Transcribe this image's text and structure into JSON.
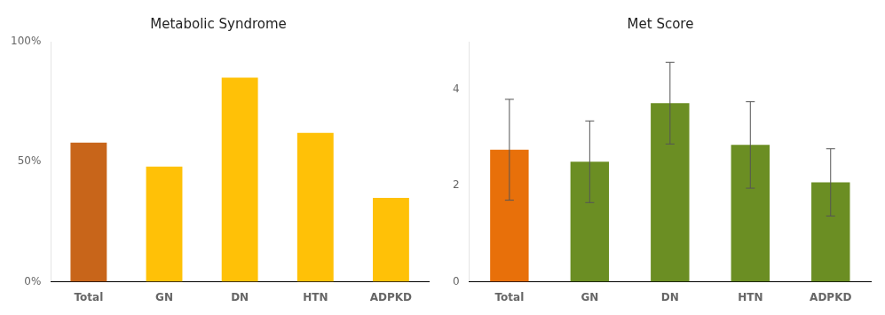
{
  "chart_data": [
    {
      "type": "bar",
      "title": "Metabolic Syndrome",
      "categories": [
        "Total",
        "GN",
        "DN",
        "HTN",
        "ADPKD"
      ],
      "values": [
        0.58,
        0.48,
        0.85,
        0.62,
        0.35
      ],
      "colors": [
        "#C8651A",
        "#FFC107",
        "#FFC107",
        "#FFC107",
        "#FFC107"
      ],
      "ylim": [
        0,
        1.0
      ],
      "yticks": [
        {
          "value": 0.0,
          "label": "0%"
        },
        {
          "value": 0.5,
          "label": "50%"
        },
        {
          "value": 1.0,
          "label": "100%"
        }
      ],
      "grid": false
    },
    {
      "type": "bar",
      "title": "Met Score",
      "categories": [
        "Total",
        "GN",
        "DN",
        "HTN",
        "ADPKD"
      ],
      "values": [
        2.75,
        2.5,
        3.72,
        2.85,
        2.07
      ],
      "errors": [
        1.05,
        0.85,
        0.85,
        0.9,
        0.7
      ],
      "colors": [
        "#E8700A",
        "#6B8E23",
        "#6B8E23",
        "#6B8E23",
        "#6B8E23"
      ],
      "ylim": [
        0,
        5.0
      ],
      "yticks": [
        0,
        2,
        4
      ],
      "grid": false
    }
  ]
}
